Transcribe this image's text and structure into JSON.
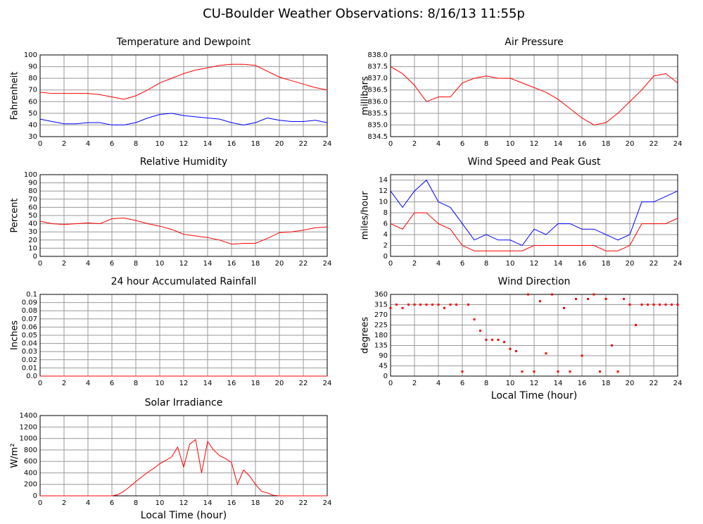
{
  "title": "CU-Boulder Weather Observations: 8/16/13 11:55p",
  "chart_data": [
    {
      "type": "line",
      "title": "Temperature and Dewpoint",
      "ylabel": "Fahrenheit",
      "grid": true,
      "x": [
        0,
        1,
        2,
        3,
        4,
        5,
        6,
        7,
        8,
        9,
        10,
        11,
        12,
        13,
        14,
        15,
        16,
        17,
        18,
        19,
        20,
        21,
        22,
        23,
        24
      ],
      "series": [
        {
          "color": "#ff0000",
          "values": [
            68,
            67,
            67,
            67,
            67,
            66,
            64,
            62,
            65,
            70,
            76,
            80,
            84,
            87,
            89,
            91,
            92,
            92,
            91,
            86,
            81,
            78,
            75,
            72,
            70
          ]
        },
        {
          "color": "#0000ff",
          "values": [
            45,
            43,
            41,
            41,
            42,
            42,
            40,
            40,
            42,
            46,
            49,
            50,
            48,
            47,
            46,
            45,
            42,
            40,
            42,
            46,
            44,
            43,
            43,
            44,
            42
          ]
        }
      ],
      "xlim": [
        0,
        24
      ],
      "xticks": [
        0,
        2,
        4,
        6,
        8,
        10,
        12,
        14,
        16,
        18,
        20,
        22,
        24
      ],
      "ylim": [
        30,
        100
      ],
      "yticks": [
        30,
        40,
        50,
        60,
        70,
        80,
        90,
        100
      ]
    },
    {
      "type": "line",
      "title": "Air Pressure",
      "ylabel": "millibars",
      "grid": true,
      "x": [
        0,
        1,
        2,
        3,
        4,
        5,
        6,
        7,
        8,
        9,
        10,
        11,
        12,
        13,
        14,
        15,
        16,
        17,
        18,
        19,
        20,
        21,
        22,
        23,
        24
      ],
      "series": [
        {
          "color": "#ff0000",
          "values": [
            837.5,
            837.2,
            836.7,
            836.0,
            836.2,
            836.2,
            836.8,
            837.0,
            837.1,
            837.0,
            837.0,
            836.8,
            836.6,
            836.4,
            836.1,
            835.7,
            835.3,
            835.0,
            835.1,
            835.5,
            836.0,
            836.5,
            837.1,
            837.2,
            836.8
          ]
        }
      ],
      "xlim": [
        0,
        24
      ],
      "xticks": [
        0,
        2,
        4,
        6,
        8,
        10,
        12,
        14,
        16,
        18,
        20,
        22,
        24
      ],
      "ylim": [
        834.5,
        838
      ],
      "yticks": [
        834.5,
        {
          "value": 835,
          "label": "835.0"
        },
        835.5,
        {
          "value": 836,
          "label": "836.0"
        },
        836.5,
        {
          "value": 837,
          "label": "837.0"
        },
        837.5,
        {
          "value": 838,
          "label": "838.0"
        }
      ]
    },
    {
      "type": "line",
      "title": "Relative Humidity",
      "ylabel": "Percent",
      "grid": true,
      "x": [
        0,
        1,
        2,
        3,
        4,
        5,
        6,
        7,
        8,
        9,
        10,
        11,
        12,
        13,
        14,
        15,
        16,
        17,
        18,
        19,
        20,
        21,
        22,
        23,
        24
      ],
      "series": [
        {
          "color": "#ff0000",
          "values": [
            43,
            40,
            39,
            40,
            41,
            40,
            46,
            47,
            44,
            40,
            37,
            33,
            27,
            25,
            23,
            20,
            15,
            16,
            16,
            22,
            29,
            30,
            32,
            35,
            36
          ]
        }
      ],
      "xlim": [
        0,
        24
      ],
      "xticks": [
        0,
        2,
        4,
        6,
        8,
        10,
        12,
        14,
        16,
        18,
        20,
        22,
        24
      ],
      "ylim": [
        0,
        100
      ],
      "yticks": [
        0,
        10,
        20,
        30,
        40,
        50,
        60,
        70,
        80,
        90,
        100
      ]
    },
    {
      "type": "line",
      "title": "Wind Speed and Peak Gust",
      "ylabel": "miles/hour",
      "grid": true,
      "x": [
        0,
        1,
        2,
        3,
        4,
        5,
        6,
        7,
        8,
        9,
        10,
        11,
        12,
        13,
        14,
        15,
        16,
        17,
        18,
        19,
        20,
        21,
        22,
        23,
        24
      ],
      "series": [
        {
          "color": "#0000ff",
          "values": [
            12,
            9,
            12,
            14,
            10,
            9,
            6,
            3,
            4,
            3,
            3,
            2,
            5,
            4,
            6,
            6,
            5,
            5,
            4,
            3,
            4,
            10,
            10,
            11,
            12
          ]
        },
        {
          "color": "#ff0000",
          "values": [
            6,
            5,
            8,
            8,
            6,
            5,
            2,
            1,
            1,
            1,
            1,
            1,
            2,
            2,
            2,
            2,
            2,
            2,
            1,
            1,
            2,
            6,
            6,
            6,
            7
          ]
        }
      ],
      "xlim": [
        0,
        24
      ],
      "xticks": [
        0,
        2,
        4,
        6,
        8,
        10,
        12,
        14,
        16,
        18,
        20,
        22,
        24
      ],
      "ylim": [
        0,
        15
      ],
      "yticks": [
        0,
        2,
        4,
        6,
        8,
        10,
        12,
        14
      ]
    },
    {
      "type": "line",
      "title": "24 hour Accumulated Rainfall",
      "ylabel": "Inches",
      "grid": true,
      "x": [
        0,
        1,
        2,
        3,
        4,
        5,
        6,
        7,
        8,
        9,
        10,
        11,
        12,
        13,
        14,
        15,
        16,
        17,
        18,
        19,
        20,
        21,
        22,
        23,
        24
      ],
      "series": [
        {
          "color": "#ff0000",
          "values": [
            0,
            0,
            0,
            0,
            0,
            0,
            0,
            0,
            0,
            0,
            0,
            0,
            0,
            0,
            0,
            0,
            0,
            0,
            0,
            0,
            0,
            0,
            0,
            0,
            0
          ]
        }
      ],
      "xlim": [
        0,
        24
      ],
      "xticks": [
        0,
        2,
        4,
        6,
        8,
        10,
        12,
        14,
        16,
        18,
        20,
        22,
        24
      ],
      "ylim": [
        0,
        0.1
      ],
      "yticks": [
        {
          "value": 0,
          "label": "0.0"
        },
        0.01,
        0.02,
        0.03,
        0.04,
        0.05,
        0.06,
        0.07,
        0.08,
        0.09,
        0.1
      ]
    },
    {
      "type": "scatter",
      "title": "Wind Direction",
      "ylabel": "degrees",
      "xlabel": "Local Time (hour)",
      "grid": true,
      "color": "#ff0000",
      "x": [
        0,
        0.5,
        1,
        1.5,
        2,
        2.5,
        3,
        3.5,
        4,
        4.5,
        5,
        5.5,
        6,
        6.5,
        7,
        7.5,
        8,
        8.5,
        9,
        9.5,
        10,
        10.5,
        11,
        11.5,
        12,
        12.5,
        13,
        13.5,
        14,
        14.5,
        15,
        15.5,
        16,
        16.5,
        17,
        17.5,
        18,
        18.5,
        19,
        19.5,
        20,
        20.5,
        21,
        21.5,
        22,
        22.5,
        23,
        23.5,
        24
      ],
      "values": [
        300,
        315,
        300,
        315,
        315,
        315,
        315,
        315,
        315,
        300,
        315,
        315,
        20,
        315,
        250,
        200,
        160,
        160,
        160,
        150,
        120,
        110,
        20,
        360,
        20,
        330,
        100,
        360,
        20,
        300,
        20,
        340,
        90,
        340,
        360,
        20,
        340,
        135,
        20,
        340,
        315,
        225,
        315,
        315,
        315,
        315,
        315,
        315,
        315
      ],
      "xlim": [
        0,
        24
      ],
      "xticks": [
        0,
        2,
        4,
        6,
        8,
        10,
        12,
        14,
        16,
        18,
        20,
        22,
        24
      ],
      "ylim": [
        0,
        360
      ],
      "yticks": [
        0,
        45,
        90,
        135,
        180,
        225,
        270,
        315,
        360
      ]
    },
    {
      "type": "line",
      "title": "Solar Irradiance",
      "ylabel": "W/m²",
      "xlabel": "Local Time (hour)",
      "grid": true,
      "x": [
        0,
        0.5,
        1,
        1.5,
        2,
        2.5,
        3,
        3.5,
        4,
        4.5,
        5,
        5.5,
        6,
        6.5,
        7,
        7.5,
        8,
        8.5,
        9,
        9.5,
        10,
        10.5,
        11,
        11.5,
        12,
        12.5,
        13,
        13.5,
        14,
        14.5,
        15,
        15.5,
        16,
        16.5,
        17,
        17.5,
        18,
        18.5,
        19,
        19.5,
        20,
        20.5,
        21,
        21.5,
        22,
        22.5,
        23,
        23.5,
        24
      ],
      "series": [
        {
          "color": "#ff0000",
          "values": [
            0,
            0,
            0,
            0,
            0,
            0,
            0,
            0,
            0,
            0,
            0,
            0,
            0,
            20,
            80,
            160,
            250,
            330,
            410,
            480,
            560,
            620,
            680,
            850,
            500,
            900,
            980,
            400,
            950,
            800,
            700,
            650,
            580,
            200,
            450,
            350,
            200,
            80,
            50,
            10,
            0,
            0,
            0,
            0,
            0,
            0,
            0,
            0,
            0
          ]
        }
      ],
      "xlim": [
        0,
        24
      ],
      "xticks": [
        0,
        2,
        4,
        6,
        8,
        10,
        12,
        14,
        16,
        18,
        20,
        22,
        24
      ],
      "ylim": [
        0,
        1400
      ],
      "yticks": [
        0,
        200,
        400,
        600,
        800,
        1000,
        1200,
        1400
      ]
    }
  ]
}
